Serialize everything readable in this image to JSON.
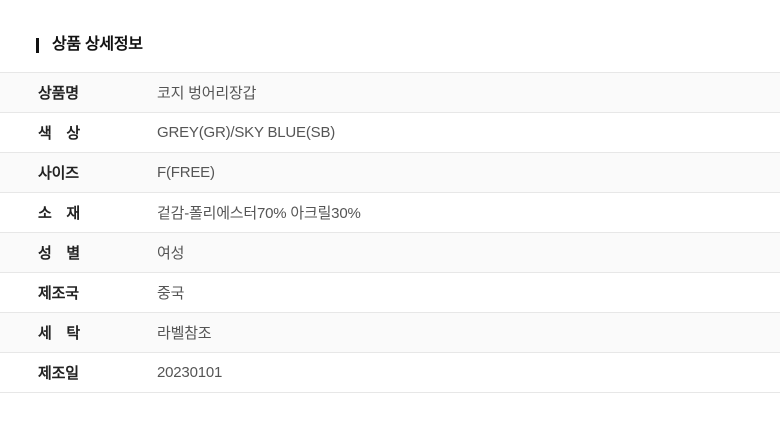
{
  "section": {
    "title": "상품 상세정보"
  },
  "table": {
    "rows": [
      {
        "label": "상품명",
        "value": "코지 벙어리장갑"
      },
      {
        "label": "색　상",
        "value": "GREY(GR)/SKY BLUE(SB)"
      },
      {
        "label": "사이즈",
        "value": "F(FREE)"
      },
      {
        "label": "소　재",
        "value": "겉감-폴리에스터70% 아크릴30%"
      },
      {
        "label": "성　별",
        "value": "여성"
      },
      {
        "label": "제조국",
        "value": "중국"
      },
      {
        "label": "세　탁",
        "value": "라벨참조"
      },
      {
        "label": "제조일",
        "value": "20230101"
      }
    ]
  },
  "colors": {
    "title_text": "#111111",
    "label_text": "#222222",
    "value_text": "#555555",
    "row_alt_bg": "#fafafa",
    "row_bg": "#ffffff",
    "border": "#e7e7e7",
    "header_bar": "#111111"
  }
}
